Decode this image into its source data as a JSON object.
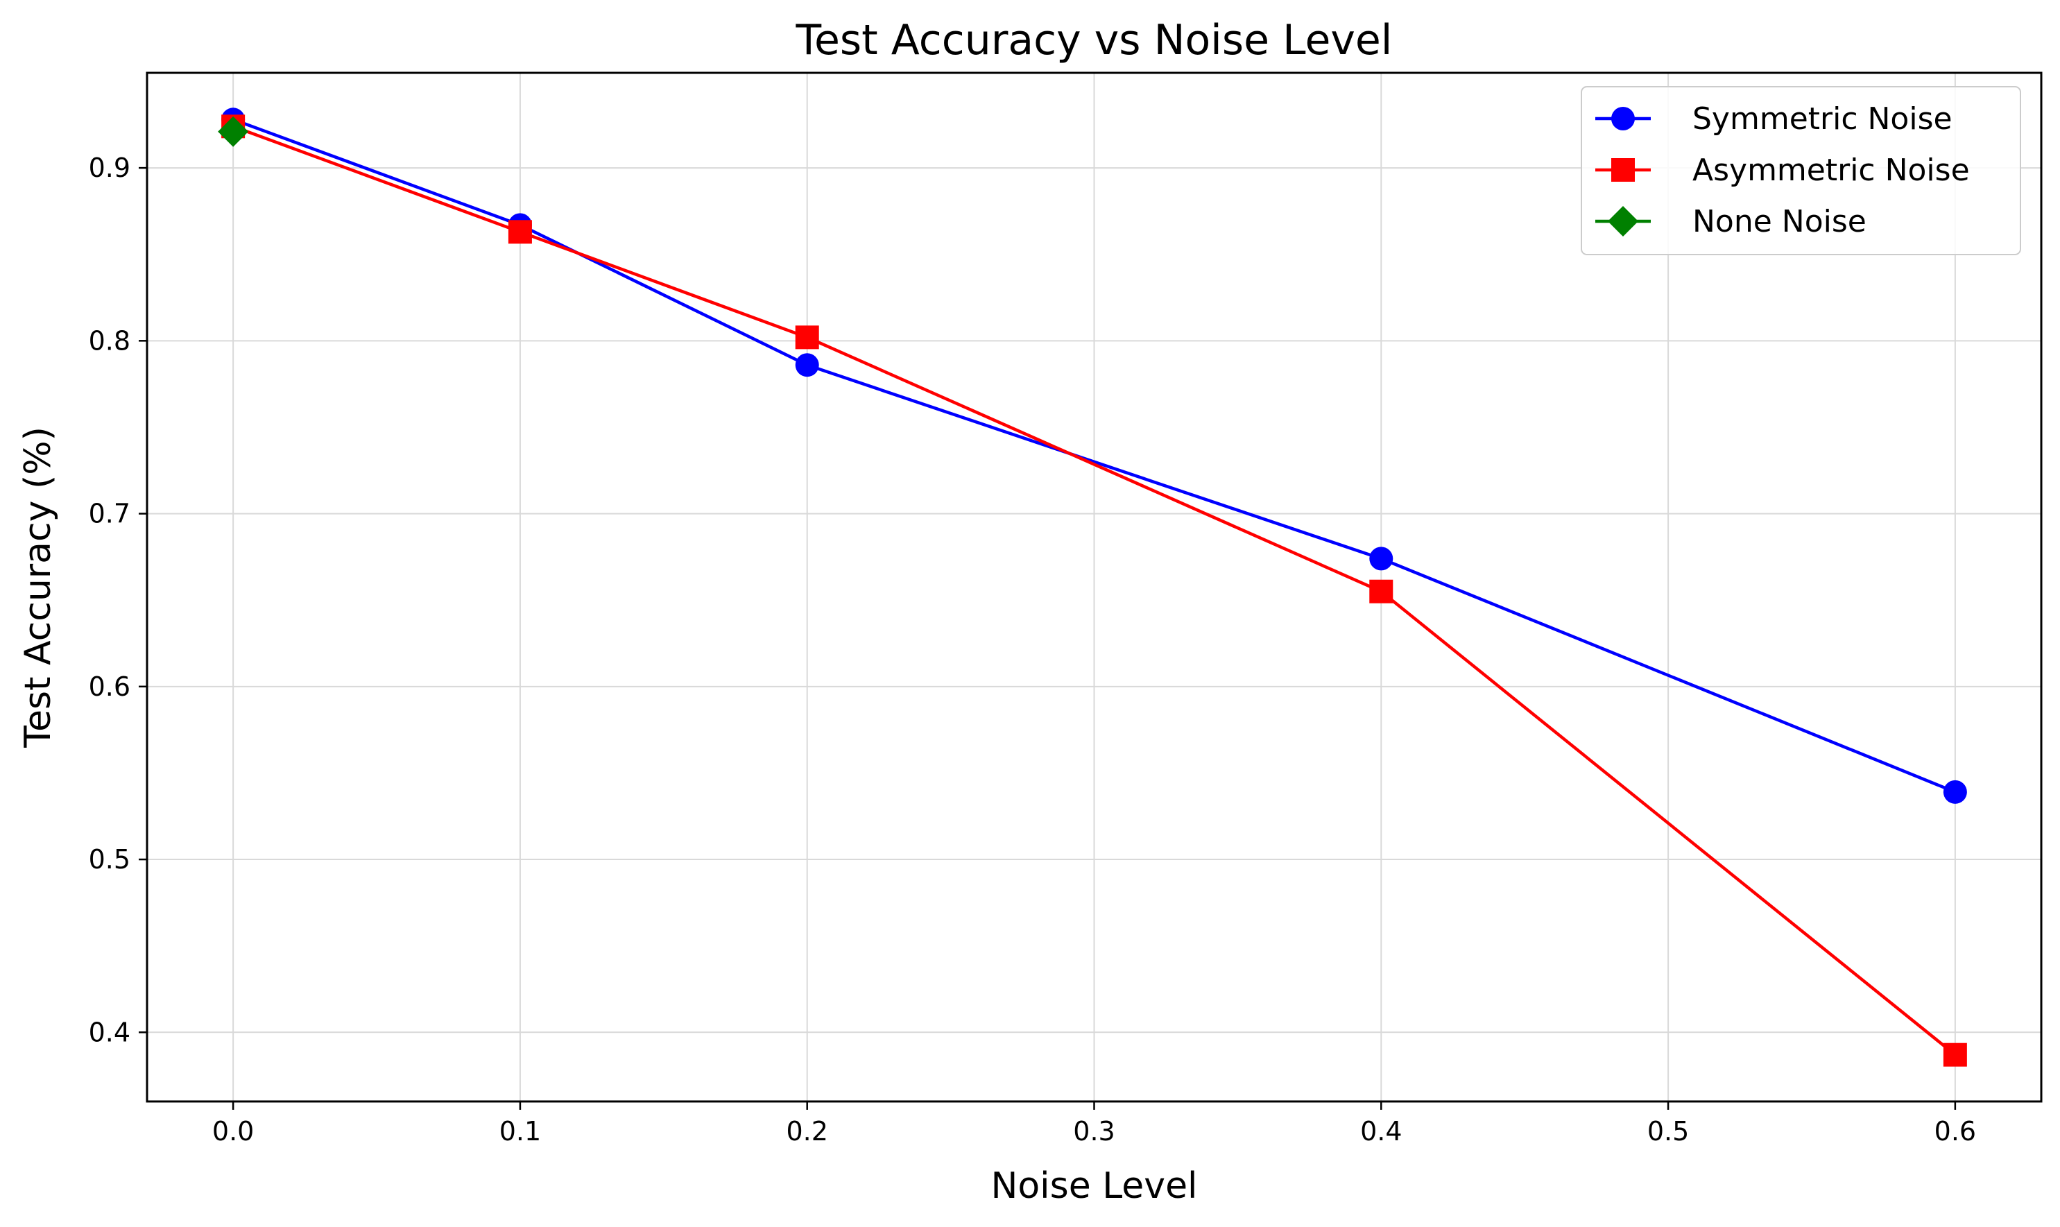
{
  "chart_data": {
    "type": "line",
    "title": "Test Accuracy vs Noise Level",
    "xlabel": "Noise Level",
    "ylabel": "Test Accuracy (%)",
    "xlim": [
      -0.03,
      0.63
    ],
    "ylim": [
      0.36,
      0.955
    ],
    "xticks": [
      0.0,
      0.1,
      0.2,
      0.3,
      0.4,
      0.5,
      0.6
    ],
    "xtick_labels": [
      "0.0",
      "0.1",
      "0.2",
      "0.3",
      "0.4",
      "0.5",
      "0.6"
    ],
    "yticks": [
      0.4,
      0.5,
      0.6,
      0.7,
      0.8,
      0.9
    ],
    "ytick_labels": [
      "0.4",
      "0.5",
      "0.6",
      "0.7",
      "0.8",
      "0.9"
    ],
    "grid": true,
    "legend_position": "top-right",
    "series": [
      {
        "name": "Symmetric Noise",
        "color": "#0000ff",
        "marker": "circle",
        "x": [
          0.0,
          0.1,
          0.2,
          0.4,
          0.6
        ],
        "y": [
          0.928,
          0.867,
          0.786,
          0.674,
          0.539
        ]
      },
      {
        "name": "Asymmetric Noise",
        "color": "#ff0000",
        "marker": "square",
        "x": [
          0.0,
          0.1,
          0.2,
          0.4,
          0.6
        ],
        "y": [
          0.924,
          0.863,
          0.802,
          0.655,
          0.387
        ]
      },
      {
        "name": "None Noise",
        "color": "#008000",
        "marker": "diamond",
        "x": [
          0.0
        ],
        "y": [
          0.921
        ]
      }
    ]
  }
}
